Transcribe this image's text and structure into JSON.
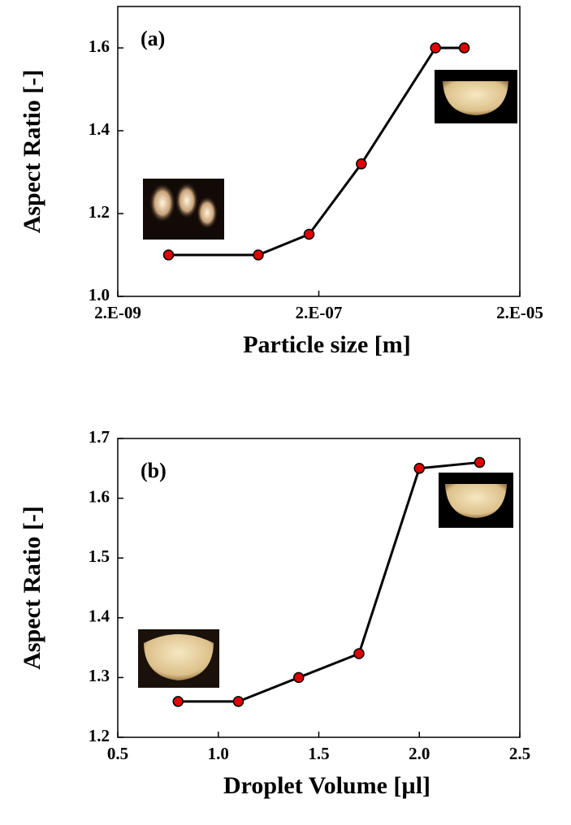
{
  "chart_data": [
    {
      "type": "line",
      "panel_label": "(a)",
      "x_label": "Particle size [m]",
      "y_label": "Aspect Ratio [-]",
      "xscale": "log",
      "x": [
        6.4e-09,
        5e-08,
        1.6e-07,
        5.3e-07,
        2.9e-06,
        5.6e-06
      ],
      "series": [
        {
          "color": "#000000",
          "marker_color": "#e00000",
          "values": [
            1.1,
            1.1,
            1.15,
            1.32,
            1.6,
            1.6
          ]
        }
      ],
      "xlim": [
        2e-09,
        2e-05
      ],
      "xticks": [
        {
          "value": 2e-09,
          "label": "2.E-09"
        },
        {
          "value": 2e-07,
          "label": "2.E-07"
        },
        {
          "value": 2e-05,
          "label": "2.E-05"
        }
      ],
      "ylim": [
        1,
        1.7
      ],
      "yticks": [
        {
          "value": 1,
          "label": "1.0"
        },
        1.2,
        1.4,
        1.6
      ]
    },
    {
      "type": "line",
      "panel_label": "(b)",
      "x_label": "Droplet Volume [µl]",
      "y_label": "Aspect Ratio [-]",
      "x": [
        0.8,
        1.1,
        1.4,
        1.7,
        2.0,
        2.3
      ],
      "series": [
        {
          "color": "#000000",
          "marker_color": "#e00000",
          "values": [
            1.26,
            1.26,
            1.3,
            1.34,
            1.65,
            1.66
          ]
        }
      ],
      "xlim": [
        0.5,
        2.5
      ],
      "xticks": [
        0.5,
        {
          "value": 1,
          "label": "1.0"
        },
        1.5,
        {
          "value": 2,
          "label": "2.0"
        },
        2.5
      ],
      "ylim": [
        1.2,
        1.7
      ],
      "yticks": [
        1.2,
        1.3,
        1.4,
        1.5,
        1.6,
        1.7
      ]
    }
  ]
}
